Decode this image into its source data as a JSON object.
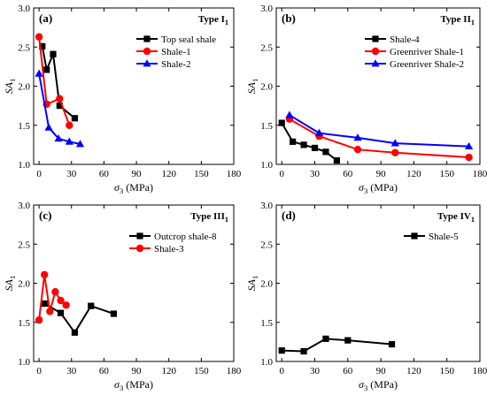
{
  "chart_data": [
    {
      "panel_tag": "(a)",
      "type": "line",
      "type_label": "Type I",
      "type_label_sub": "1",
      "xlabel": "σ",
      "xlabel_sub": "3",
      "xlabel_unit": " (MPa)",
      "ylabel": "SA",
      "ylabel_sub": "1",
      "xlim": [
        -5,
        180
      ],
      "ylim": [
        1.0,
        3.0
      ],
      "xticks": [
        0,
        30,
        60,
        90,
        120,
        150,
        180
      ],
      "yticks": [
        1.0,
        1.5,
        2.0,
        2.5,
        3.0
      ],
      "ytick_labels": [
        "1.0",
        "1.5",
        "2.0",
        "2.5",
        "3.0"
      ],
      "legend_position": "top-right",
      "series": [
        {
          "name": "Top seal shale",
          "marker": "square",
          "color": "#000000",
          "x": [
            3,
            7,
            13,
            19,
            33
          ],
          "y": [
            2.51,
            2.21,
            2.41,
            1.75,
            1.59
          ]
        },
        {
          "name": "Shale-1",
          "marker": "circle",
          "color": "#ff0000",
          "x": [
            0,
            7,
            19,
            28
          ],
          "y": [
            2.63,
            1.77,
            1.84,
            1.5
          ]
        },
        {
          "name": "Shale-2",
          "marker": "triangle",
          "color": "#0000ff",
          "x": [
            0,
            9,
            18,
            28,
            38
          ],
          "y": [
            2.16,
            1.47,
            1.33,
            1.29,
            1.26
          ]
        }
      ]
    },
    {
      "panel_tag": "(b)",
      "type": "line",
      "type_label": "Type II",
      "type_label_sub": "1",
      "xlabel": "σ",
      "xlabel_sub": "3",
      "xlabel_unit": " (MPa)",
      "ylabel": "SA",
      "ylabel_sub": "1",
      "xlim": [
        -5,
        180
      ],
      "ylim": [
        1.0,
        3.0
      ],
      "xticks": [
        0,
        30,
        60,
        90,
        120,
        150,
        180
      ],
      "yticks": [
        1.0,
        1.5,
        2.0,
        2.5,
        3.0
      ],
      "ytick_labels": [
        "1.0",
        "1.5",
        "2.0",
        "2.5",
        "3.0"
      ],
      "legend_position": "top-right",
      "series": [
        {
          "name": "Shale-4",
          "marker": "square",
          "color": "#000000",
          "x": [
            0,
            10,
            20,
            30,
            40,
            50
          ],
          "y": [
            1.53,
            1.29,
            1.25,
            1.21,
            1.16,
            1.05
          ]
        },
        {
          "name": "Greenriver Shale-1",
          "marker": "circle",
          "color": "#ff0000",
          "x": [
            7,
            34,
            69,
            103,
            170
          ],
          "y": [
            1.58,
            1.36,
            1.19,
            1.15,
            1.09
          ]
        },
        {
          "name": "Greenriver Shale-2",
          "marker": "triangle",
          "color": "#0000ff",
          "x": [
            7,
            34,
            69,
            103,
            170
          ],
          "y": [
            1.63,
            1.4,
            1.34,
            1.27,
            1.23
          ]
        }
      ]
    },
    {
      "panel_tag": "(c)",
      "type": "line",
      "type_label": "Type III",
      "type_label_sub": "1",
      "xlabel": "σ",
      "xlabel_sub": "3",
      "xlabel_unit": " (MPa)",
      "ylabel": "SA",
      "ylabel_sub": "1",
      "xlim": [
        -5,
        180
      ],
      "ylim": [
        1.0,
        3.0
      ],
      "xticks": [
        0,
        30,
        60,
        90,
        120,
        150,
        180
      ],
      "yticks": [
        1.0,
        1.5,
        2.0,
        2.5,
        3.0
      ],
      "ytick_labels": [
        "1.0",
        "1.5",
        "2.0",
        "2.5",
        "3.0"
      ],
      "legend_position": "top-right",
      "series": [
        {
          "name": "Outcrop shale-8",
          "marker": "square",
          "color": "#000000",
          "x": [
            5,
            20,
            33,
            48,
            69
          ],
          "y": [
            1.74,
            1.62,
            1.37,
            1.71,
            1.61
          ]
        },
        {
          "name": "Shale-3",
          "marker": "circle",
          "color": "#ff0000",
          "x": [
            0,
            5,
            10,
            15,
            20,
            25
          ],
          "y": [
            1.53,
            2.11,
            1.64,
            1.89,
            1.78,
            1.72
          ]
        }
      ]
    },
    {
      "panel_tag": "(d)",
      "type": "line",
      "type_label": "Type IV",
      "type_label_sub": "1",
      "xlabel": "σ",
      "xlabel_sub": "3",
      "xlabel_unit": " (MPa)",
      "ylabel": "SA",
      "ylabel_sub": "1",
      "xlim": [
        -5,
        180
      ],
      "ylim": [
        1.0,
        3.0
      ],
      "xticks": [
        0,
        30,
        60,
        90,
        120,
        150,
        180
      ],
      "yticks": [
        1.0,
        1.5,
        2.0,
        2.5,
        3.0
      ],
      "ytick_labels": [
        "1.0",
        "1.5",
        "2.0",
        "2.5",
        "3.0"
      ],
      "legend_position": "top-right",
      "series": [
        {
          "name": "Shale-5",
          "marker": "square",
          "color": "#000000",
          "x": [
            0,
            20,
            40,
            60,
            100
          ],
          "y": [
            1.14,
            1.13,
            1.29,
            1.27,
            1.22
          ]
        }
      ]
    }
  ]
}
